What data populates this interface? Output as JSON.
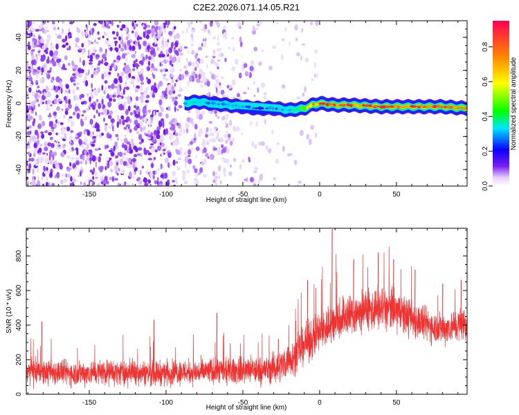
{
  "figure": {
    "title": "C2E2.2026.071.14.05.R21"
  },
  "chart_data": [
    {
      "type": "heatmap",
      "xlabel": "Height of straight line (km)",
      "ylabel": "Frequency (Hz)",
      "xlim": [
        -191,
        96
      ],
      "ylim": [
        -50,
        50
      ],
      "xticks": [
        -150,
        -100,
        -50,
        0,
        50
      ],
      "yticks": [
        -40,
        -20,
        0,
        20,
        40
      ],
      "colorbar": {
        "label": "Normalized spectral amplitude",
        "range": [
          0,
          0.95
        ],
        "ticks": [
          0.0,
          0.2,
          0.4,
          0.6,
          0.8
        ]
      },
      "signal_band": {
        "x": [
          -88,
          -80,
          -70,
          -60,
          -50,
          -40,
          -30,
          -20,
          -10,
          -5,
          0,
          10,
          20,
          40,
          60,
          80,
          96
        ],
        "center_hz": [
          0,
          1,
          0,
          -1,
          -2,
          -3,
          -3,
          -4,
          -3,
          -1,
          0,
          -1,
          -1,
          -2,
          -2,
          -2,
          -3
        ],
        "peak_amplitude": [
          0.35,
          0.4,
          0.3,
          0.35,
          0.3,
          0.25,
          0.3,
          0.35,
          0.5,
          0.8,
          0.9,
          0.9,
          0.92,
          0.93,
          0.93,
          0.9,
          0.8
        ]
      }
    },
    {
      "type": "line",
      "xlabel": "Height of straight line (km)",
      "ylabel": "SNR (10 * v/v)",
      "xlim": [
        -191,
        96
      ],
      "ylim": [
        0,
        960
      ],
      "xticks": [
        -150,
        -100,
        -50,
        0,
        50
      ],
      "yticks": [
        0,
        200,
        400,
        600,
        800
      ],
      "series": [
        {
          "name": "SNR",
          "color": "#ee3333",
          "x": [
            -191,
            -180,
            -170,
            -160,
            -150,
            -140,
            -130,
            -120,
            -110,
            -100,
            -90,
            -80,
            -70,
            -60,
            -50,
            -40,
            -30,
            -25,
            -20,
            -15,
            -10,
            -5,
            0,
            5,
            10,
            15,
            20,
            25,
            30,
            35,
            40,
            45,
            50,
            55,
            60,
            65,
            70,
            75,
            80,
            85,
            90,
            96
          ],
          "mean": [
            130,
            125,
            130,
            120,
            125,
            130,
            125,
            130,
            120,
            125,
            130,
            125,
            135,
            130,
            140,
            135,
            150,
            170,
            200,
            230,
            290,
            320,
            360,
            390,
            420,
            450,
            460,
            470,
            480,
            490,
            500,
            490,
            480,
            460,
            440,
            420,
            400,
            390,
            380,
            390,
            400,
            420
          ],
          "spread": [
            110,
            110,
            110,
            110,
            110,
            110,
            110,
            110,
            110,
            110,
            110,
            110,
            115,
            110,
            120,
            120,
            130,
            140,
            150,
            160,
            170,
            180,
            190,
            190,
            190,
            190,
            190,
            190,
            190,
            190,
            190,
            190,
            190,
            180,
            170,
            160,
            150,
            140,
            140,
            140,
            150,
            150
          ],
          "peaks": [
            {
              "x": -181,
              "y": 420
            },
            {
              "x": -108,
              "y": 430
            },
            {
              "x": -67,
              "y": 470
            },
            {
              "x": -27,
              "y": 320
            },
            {
              "x": -8,
              "y": 660
            },
            {
              "x": 8,
              "y": 955
            },
            {
              "x": 22,
              "y": 780
            },
            {
              "x": 38,
              "y": 820
            },
            {
              "x": 48,
              "y": 780
            },
            {
              "x": 62,
              "y": 720
            },
            {
              "x": 80,
              "y": 640
            },
            {
              "x": 92,
              "y": 660
            }
          ]
        }
      ]
    }
  ]
}
